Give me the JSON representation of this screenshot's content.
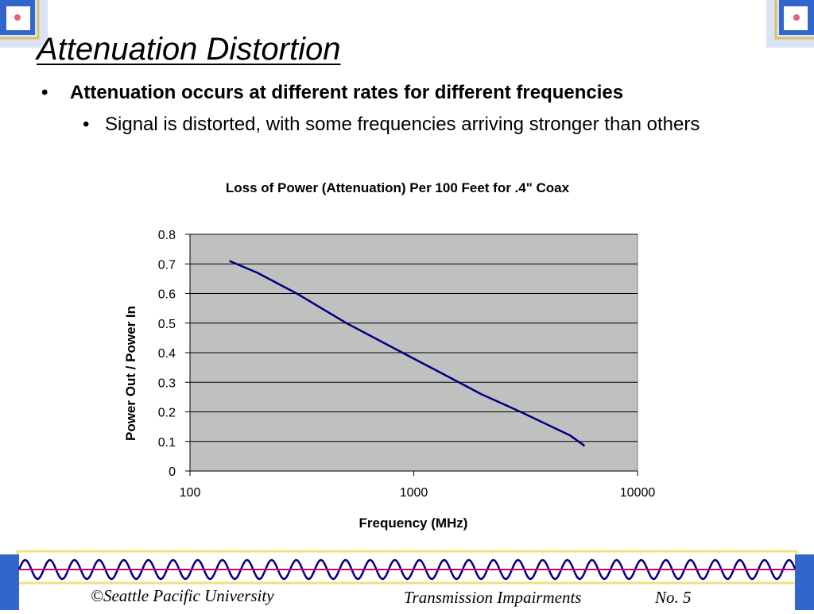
{
  "slide": {
    "title": "Attenuation Distortion",
    "bullets": [
      {
        "symbol": "•",
        "text": "Attenuation occurs at different rates for different frequencies"
      },
      {
        "symbol": "•",
        "text": "Signal is distorted, with some frequencies arriving stronger than others"
      }
    ]
  },
  "footer": {
    "left": "©Seattle Pacific University",
    "center": "Transmission Impairments",
    "right": "No. 5"
  },
  "colors": {
    "plot_background": "#c0c0c0",
    "line": "#000080",
    "wave_blue": "#000080",
    "wave_magenta": "#cc0077",
    "band_yellow": "#f0e080",
    "corner_blue": "#3366cc",
    "corner_gold": "#e0c060"
  },
  "chart_data": {
    "type": "line",
    "title": "Loss of Power (Attenuation) Per 100 Feet for .4\" Coax",
    "xlabel": "Frequency (MHz)",
    "ylabel": "Power Out / Power In",
    "x_scale": "log",
    "xlim": [
      100,
      10000
    ],
    "ylim": [
      0,
      0.8
    ],
    "x_ticks": [
      "100",
      "1000",
      "10000"
    ],
    "y_ticks": [
      "0",
      "0.1",
      "0.2",
      "0.3",
      "0.4",
      "0.5",
      "0.6",
      "0.7",
      "0.8"
    ],
    "grid": true,
    "legend": "none",
    "series": [
      {
        "x": [
          150,
          200,
          300,
          500,
          1000,
          1500,
          2000,
          3000,
          5000,
          5800
        ],
        "y": [
          0.71,
          0.67,
          0.6,
          0.5,
          0.38,
          0.31,
          0.26,
          0.2,
          0.12,
          0.085
        ]
      }
    ]
  }
}
